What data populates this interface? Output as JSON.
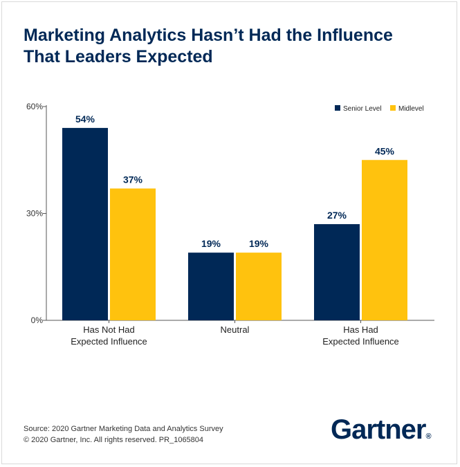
{
  "title": {
    "line1": "Marketing Analytics Hasn’t Had the Influence",
    "line2": "That Leaders Expected"
  },
  "chart_data": {
    "type": "bar",
    "categories": [
      [
        "Has Not Had",
        "Expected Influence"
      ],
      [
        "Neutral"
      ],
      [
        "Has Had",
        "Expected Influence"
      ]
    ],
    "series": [
      {
        "name": "Senior Level",
        "values": [
          54,
          19,
          27
        ],
        "labels": [
          "54%",
          "19%",
          "27%"
        ],
        "color": "#002856"
      },
      {
        "name": "Midlevel",
        "values": [
          37,
          19,
          45
        ],
        "labels": [
          "37%",
          "19%",
          "45%"
        ],
        "color": "#ffc20e"
      }
    ],
    "ylim": [
      0,
      60
    ],
    "yticks": [
      0,
      30,
      60
    ],
    "ytick_labels": [
      "0%",
      "30%",
      "60%"
    ],
    "legend_position": "top-right",
    "grid": false
  },
  "footer": {
    "source": "Source: 2020 Gartner Marketing Data and Analytics Survey",
    "copyright": "© 2020 Gartner, Inc. All rights reserved. PR_1065804"
  },
  "logo": {
    "text": "Gartner",
    "mark": "®"
  },
  "colors": {
    "navy": "#002856",
    "gold": "#ffc20e"
  }
}
